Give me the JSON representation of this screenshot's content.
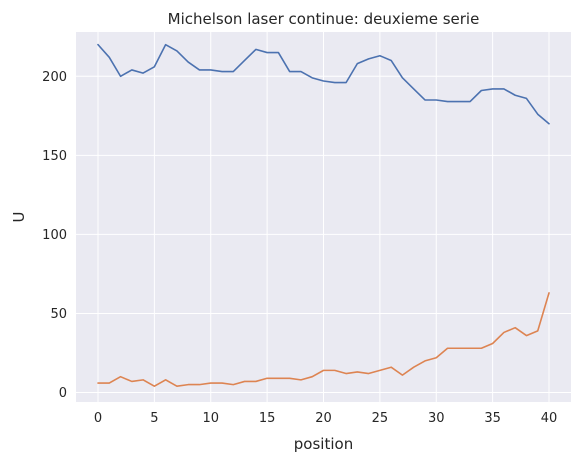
{
  "chart_data": {
    "type": "line",
    "title": "Michelson laser continue: deuxieme serie",
    "xlabel": "position",
    "ylabel": "U",
    "xlim": [
      -1.95,
      41.95
    ],
    "ylim": [
      -6,
      228
    ],
    "x_ticks": [
      0,
      5,
      10,
      15,
      20,
      25,
      30,
      35,
      40
    ],
    "y_ticks": [
      0,
      50,
      100,
      150,
      200
    ],
    "grid": true,
    "background": "#eaeaf2",
    "grid_color": "#ffffff",
    "x": [
      0,
      1,
      2,
      3,
      4,
      5,
      6,
      7,
      8,
      9,
      10,
      11,
      12,
      13,
      14,
      15,
      16,
      17,
      18,
      19,
      20,
      21,
      22,
      23,
      24,
      25,
      26,
      27,
      28,
      29,
      30,
      31,
      32,
      33,
      34,
      35,
      36,
      37,
      38,
      39,
      40
    ],
    "series": [
      {
        "color": "#4c72b0",
        "values": [
          220,
          212,
          200,
          204,
          202,
          206,
          220,
          216,
          209,
          204,
          204,
          203,
          203,
          210,
          217,
          215,
          215,
          203,
          203,
          199,
          197,
          196,
          196,
          208,
          211,
          213,
          210,
          199,
          192,
          185,
          185,
          184,
          184,
          184,
          191,
          192,
          192,
          188,
          186,
          176,
          170
        ]
      },
      {
        "color": "#dd8452",
        "values": [
          6,
          6,
          10,
          7,
          8,
          4,
          8,
          4,
          5,
          5,
          6,
          6,
          5,
          7,
          7,
          9,
          9,
          9,
          8,
          10,
          14,
          14,
          12,
          13,
          12,
          14,
          16,
          11,
          16,
          20,
          22,
          28,
          28,
          28,
          28,
          31,
          38,
          41,
          36,
          39,
          63
        ]
      }
    ]
  }
}
